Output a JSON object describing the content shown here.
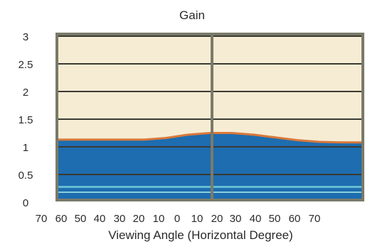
{
  "chart_data": {
    "type": "area",
    "title": "Gain",
    "xlabel": "Viewing Angle (Horizontal Degree)",
    "ylabel": "",
    "ylim": [
      0,
      3
    ],
    "xlim": [
      -70,
      70
    ],
    "y_ticks": [
      "0",
      "0.5",
      "1",
      "1.5",
      "2",
      "2.5",
      "3"
    ],
    "x_tick_labels": [
      "70",
      "60",
      "50",
      "40",
      "30",
      "20",
      "10",
      "0",
      "10",
      "20",
      "30",
      "40",
      "50",
      "60",
      "70"
    ],
    "grid": true,
    "series": [
      {
        "x": [
          -60,
          -50,
          -40,
          -30,
          -20,
          -10,
          0,
          10,
          20,
          30,
          40,
          50,
          60,
          70
        ],
        "values": [
          1.13,
          1.13,
          1.13,
          1.13,
          1.16,
          1.22,
          1.25,
          1.25,
          1.22,
          1.17,
          1.12,
          1.09,
          1.08,
          1.08
        ]
      }
    ],
    "colors": {
      "plot_background": "#f6ecd4",
      "fill": "#1d6db0",
      "curve": "#d9783a",
      "frame": "#7a7a6a",
      "gridline": "#3a3a32"
    }
  }
}
